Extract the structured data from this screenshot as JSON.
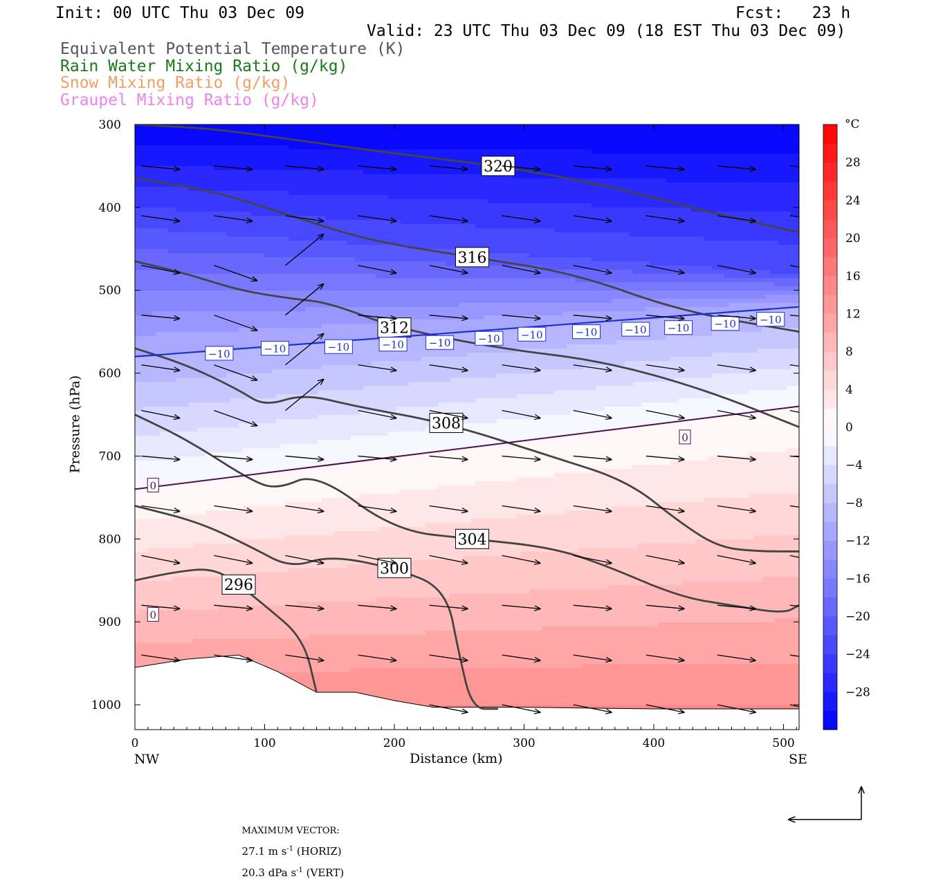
{
  "header": {
    "init": "Init: 00 UTC Thu 03 Dec 09",
    "fcst": "Fcst:   23 h",
    "valid": "Valid: 23 UTC Thu 03 Dec 09 (18 EST Thu 03 Dec 09)",
    "fields": [
      {
        "label": "Equivalent Potential Temperature (K)",
        "color": "#555555"
      },
      {
        "label": "Rain Water Mixing Ratio (g/kg)",
        "color": "#1a7a1a"
      },
      {
        "label": "Snow Mixing Ratio (g/kg)",
        "color": "#f0a060"
      },
      {
        "label": "Graupel Mixing Ratio (g/kg)",
        "color": "#ee82ee"
      }
    ]
  },
  "colorbar": {
    "unit": "°C",
    "levels": [
      -32,
      -30,
      -28,
      -26,
      -24,
      -22,
      -20,
      -18,
      -16,
      -14,
      -12,
      -10,
      -8,
      -6,
      -4,
      -2,
      0,
      2,
      4,
      6,
      8,
      10,
      12,
      14,
      16,
      18,
      20,
      22,
      24,
      26,
      28,
      30,
      32
    ],
    "tick_labels": [
      "28",
      "24",
      "20",
      "16",
      "12",
      "8",
      "4",
      "0",
      "−4",
      "−8",
      "−12",
      "−16",
      "−20",
      "−24",
      "−28"
    ],
    "tick_values": [
      28,
      24,
      20,
      16,
      12,
      8,
      4,
      0,
      -4,
      -8,
      -12,
      -16,
      -20,
      -24,
      -28
    ]
  },
  "chart_data": {
    "type": "cross-section",
    "xlabel": "Distance (km)",
    "ylabel": "Pressure (hPa)",
    "xlim": [
      0,
      512
    ],
    "ylim": [
      1030,
      300
    ],
    "x_ticks": [
      0,
      100,
      200,
      300,
      400,
      500
    ],
    "x_tick_labels": [
      "0",
      "100",
      "200",
      "300",
      "400",
      "500"
    ],
    "y_ticks": [
      300,
      400,
      500,
      600,
      700,
      800,
      900,
      1000
    ],
    "y_tick_labels": [
      "300",
      "400",
      "500",
      "600",
      "700",
      "800",
      "900",
      "1000"
    ],
    "x_end_labels": {
      "left": "NW",
      "right": "SE"
    },
    "temperature_surfaces": [
      {
        "distance": [
          0,
          512
        ],
        "pressure": [
          300,
          300
        ],
        "temp": -32
      },
      {
        "distance": [
          0,
          512
        ],
        "pressure": [
          425,
          480
        ],
        "temp": -22
      },
      {
        "distance": [
          0,
          512
        ],
        "pressure": [
          580,
          520
        ],
        "temp": -10
      },
      {
        "distance": [
          0,
          512
        ],
        "pressure": [
          740,
          640
        ],
        "temp": 0
      },
      {
        "distance": [
          0,
          512
        ],
        "pressure": [
          1000,
          1000
        ],
        "temp": 14
      }
    ],
    "theta_e_contours": [
      {
        "label": "320",
        "distance": [
          0,
          60,
          120,
          200,
          280,
          360,
          440,
          512
        ],
        "pressure": [
          300,
          305,
          318,
          335,
          350,
          372,
          405,
          430
        ]
      },
      {
        "label": "316",
        "distance": [
          0,
          60,
          120,
          180,
          260,
          340,
          420,
          512
        ],
        "pressure": [
          365,
          380,
          410,
          440,
          460,
          480,
          525,
          550
        ]
      },
      {
        "label": "312",
        "distance": [
          0,
          40,
          80,
          120,
          150,
          200,
          280,
          360,
          440,
          512
        ],
        "pressure": [
          465,
          480,
          500,
          510,
          515,
          545,
          570,
          585,
          620,
          665
        ]
      },
      {
        "label": "308",
        "distance": [
          0,
          40,
          80,
          100,
          130,
          170,
          240,
          320,
          380,
          420,
          450,
          480,
          512
        ],
        "pressure": [
          570,
          590,
          620,
          640,
          625,
          640,
          660,
          700,
          730,
          780,
          810,
          815,
          815
        ]
      },
      {
        "label": "304",
        "distance": [
          0,
          40,
          90,
          110,
          140,
          200,
          260,
          320,
          360,
          420,
          460,
          500,
          512
        ],
        "pressure": [
          650,
          680,
          730,
          740,
          720,
          790,
          800,
          810,
          830,
          870,
          880,
          890,
          880
        ]
      },
      {
        "label": "300",
        "distance": [
          0,
          50,
          90,
          120,
          150,
          200,
          240,
          250,
          260,
          280
        ],
        "pressure": [
          760,
          780,
          810,
          835,
          820,
          835,
          860,
          940,
          1005,
          1005
        ]
      },
      {
        "label": "296",
        "distance": [
          0,
          30,
          60,
          80,
          100,
          130,
          140
        ],
        "pressure": [
          850,
          840,
          835,
          855,
          880,
          920,
          985
        ]
      }
    ],
    "isotherm_labels": [
      {
        "label": "−10",
        "distance": [
          65,
          108,
          157,
          199,
          235,
          273,
          306,
          348,
          386,
          419,
          455,
          490
        ],
        "pressure": [
          576,
          570,
          568,
          565,
          563,
          558,
          553,
          550,
          547,
          545,
          540,
          535
        ]
      },
      {
        "label": "0",
        "distance": [
          14,
          424,
          14
        ],
        "pressure": [
          735,
          677,
          891
        ]
      }
    ],
    "wind_vectors": {
      "count": 133,
      "max_horizontal": "27.1 m s⁻¹ (HORIZ)",
      "max_vertical": "20.3 dPa s⁻¹ (VERT)"
    }
  },
  "footer": {
    "prefix": "MAXIMUM VECTOR:",
    "horiz": "27.1 m s",
    "horiz_sup": "-1",
    "horiz_tail": " (HORIZ)",
    "vert": "20.3 dPa s",
    "vert_sup": "-1",
    "vert_tail": " (VERT)"
  }
}
